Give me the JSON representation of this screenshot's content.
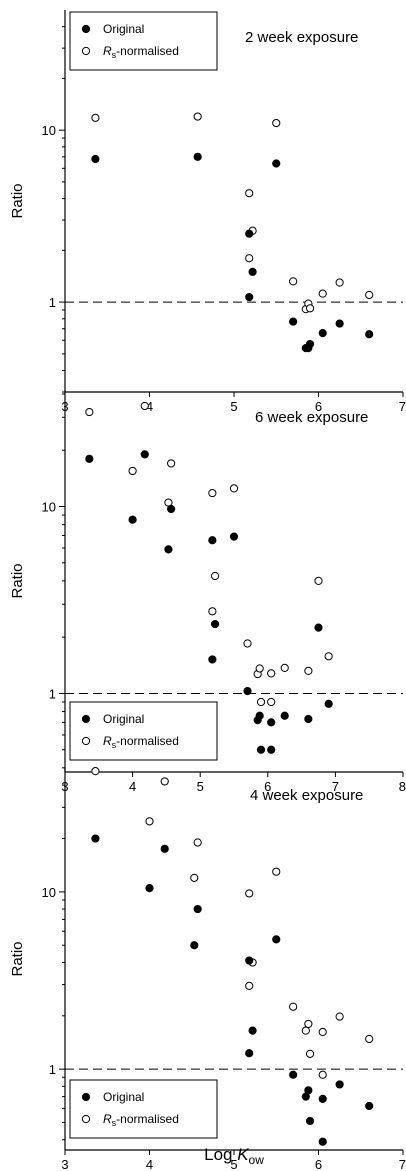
{
  "xlabel": {
    "main": "Log ",
    "italic": "K",
    "sub": "ow"
  },
  "chart_data": [
    {
      "type": "scatter",
      "title": "2 week exposure",
      "ylabel": "Ratio",
      "xlim": [
        3,
        7
      ],
      "ylim": [
        0.3,
        50
      ],
      "yscale": "log",
      "xticks": [
        "3",
        "4",
        "5",
        "6",
        "7"
      ],
      "yticks": [
        {
          "value": 1,
          "label": "1"
        },
        {
          "value": 10,
          "label": "10"
        }
      ],
      "reference_line": 1,
      "legend": {
        "placement": "top-left",
        "entries": [
          {
            "marker": "filled",
            "text": "Original"
          },
          {
            "marker": "open",
            "italic": "R",
            "sub": "s",
            "text": "-normalised"
          }
        ]
      },
      "series": [
        {
          "name": "Original",
          "marker": "filled",
          "points": [
            [
              3.36,
              6.8
            ],
            [
              4.57,
              7.0
            ],
            [
              5.18,
              1.07
            ],
            [
              5.18,
              2.5
            ],
            [
              5.22,
              1.5
            ],
            [
              5.5,
              6.4
            ],
            [
              5.7,
              0.77
            ],
            [
              5.85,
              0.54
            ],
            [
              5.88,
              0.54
            ],
            [
              5.9,
              0.57
            ],
            [
              6.05,
              0.66
            ],
            [
              6.25,
              0.75
            ],
            [
              6.6,
              0.65
            ]
          ]
        },
        {
          "name": "Rs-normalised",
          "marker": "open",
          "points": [
            [
              3.36,
              11.8
            ],
            [
              4.57,
              12.0
            ],
            [
              5.18,
              4.3
            ],
            [
              5.18,
              1.8
            ],
            [
              5.22,
              2.6
            ],
            [
              5.5,
              11.0
            ],
            [
              5.7,
              1.32
            ],
            [
              5.85,
              0.91
            ],
            [
              5.88,
              0.98
            ],
            [
              5.9,
              0.92
            ],
            [
              6.05,
              1.12
            ],
            [
              6.25,
              1.3
            ],
            [
              6.6,
              1.1
            ]
          ]
        }
      ]
    },
    {
      "type": "scatter",
      "title": "6 week exposure",
      "ylabel": "Ratio",
      "xlim": [
        3,
        8
      ],
      "ylim": [
        0.38,
        42
      ],
      "yscale": "log",
      "xticks": [
        "3",
        "4",
        "5",
        "6",
        "7",
        "8"
      ],
      "yticks": [
        {
          "value": 1,
          "label": "1"
        },
        {
          "value": 10,
          "label": "10"
        }
      ],
      "reference_line": 1,
      "legend": {
        "placement": "bottom-left",
        "entries": [
          {
            "marker": "filled",
            "text": "Original"
          },
          {
            "marker": "open",
            "italic": "R",
            "sub": "s",
            "text": "-normalised"
          }
        ]
      },
      "series": [
        {
          "name": "Original",
          "marker": "filled",
          "points": [
            [
              3.36,
              18.0
            ],
            [
              4.0,
              8.5
            ],
            [
              4.18,
              19.0
            ],
            [
              4.53,
              5.9
            ],
            [
              4.57,
              9.7
            ],
            [
              5.18,
              6.6
            ],
            [
              5.18,
              1.52
            ],
            [
              5.22,
              2.35
            ],
            [
              5.5,
              6.9
            ],
            [
              5.7,
              1.03
            ],
            [
              5.85,
              0.72
            ],
            [
              5.88,
              0.76
            ],
            [
              5.9,
              0.5
            ],
            [
              6.05,
              0.7
            ],
            [
              6.05,
              0.5
            ],
            [
              6.25,
              0.76
            ],
            [
              6.6,
              0.73
            ],
            [
              6.75,
              2.25
            ],
            [
              6.9,
              0.88
            ]
          ]
        },
        {
          "name": "Rs-normalised",
          "marker": "open",
          "points": [
            [
              3.36,
              32.0
            ],
            [
              4.0,
              15.5
            ],
            [
              4.18,
              34.5
            ],
            [
              4.53,
              10.5
            ],
            [
              4.57,
              17.0
            ],
            [
              5.18,
              11.8
            ],
            [
              5.18,
              2.75
            ],
            [
              5.22,
              4.25
            ],
            [
              5.5,
              12.5
            ],
            [
              5.7,
              1.85
            ],
            [
              5.85,
              1.27
            ],
            [
              5.88,
              1.36
            ],
            [
              5.9,
              0.9
            ],
            [
              6.05,
              1.28
            ],
            [
              6.05,
              0.9
            ],
            [
              6.25,
              1.37
            ],
            [
              6.6,
              1.32
            ],
            [
              6.75,
              4.0
            ],
            [
              6.9,
              1.58
            ]
          ]
        }
      ]
    },
    {
      "type": "scatter",
      "title": "4 week exposure",
      "ylabel": "Ratio",
      "xlim": [
        3,
        7
      ],
      "ylim": [
        0.35,
        50
      ],
      "yscale": "log",
      "xticks": [
        "3",
        "4",
        "5",
        "6",
        "7"
      ],
      "yticks": [
        {
          "value": 1,
          "label": "1"
        },
        {
          "value": 10,
          "label": "10"
        }
      ],
      "reference_line": 1,
      "legend": {
        "placement": "bottom-left",
        "entries": [
          {
            "marker": "filled",
            "text": "Original"
          },
          {
            "marker": "open",
            "italic": "R",
            "sub": "s",
            "text": "-normalised"
          }
        ]
      },
      "series": [
        {
          "name": "Original",
          "marker": "filled",
          "points": [
            [
              3.36,
              20.0
            ],
            [
              4.0,
              10.5
            ],
            [
              4.18,
              17.5
            ],
            [
              4.53,
              5.0
            ],
            [
              4.57,
              8.0
            ],
            [
              5.18,
              4.1
            ],
            [
              5.18,
              1.23
            ],
            [
              5.22,
              1.65
            ],
            [
              5.5,
              5.4
            ],
            [
              5.7,
              0.93
            ],
            [
              5.85,
              0.7
            ],
            [
              5.88,
              0.76
            ],
            [
              5.9,
              0.51
            ],
            [
              6.05,
              0.68
            ],
            [
              6.05,
              0.39
            ],
            [
              6.25,
              0.82
            ],
            [
              6.6,
              0.62
            ]
          ]
        },
        {
          "name": "Rs-normalised",
          "marker": "open",
          "points": [
            [
              3.36,
              48.0
            ],
            [
              4.0,
              25.0
            ],
            [
              4.18,
              42.0
            ],
            [
              4.53,
              12.0
            ],
            [
              4.57,
              19.0
            ],
            [
              5.18,
              9.8
            ],
            [
              5.18,
              2.95
            ],
            [
              5.22,
              4.0
            ],
            [
              5.5,
              13.0
            ],
            [
              5.7,
              2.25
            ],
            [
              5.85,
              1.65
            ],
            [
              5.88,
              1.8
            ],
            [
              5.9,
              1.22
            ],
            [
              6.05,
              1.62
            ],
            [
              6.05,
              0.93
            ],
            [
              6.25,
              1.98
            ],
            [
              6.6,
              1.48
            ]
          ]
        }
      ]
    }
  ]
}
